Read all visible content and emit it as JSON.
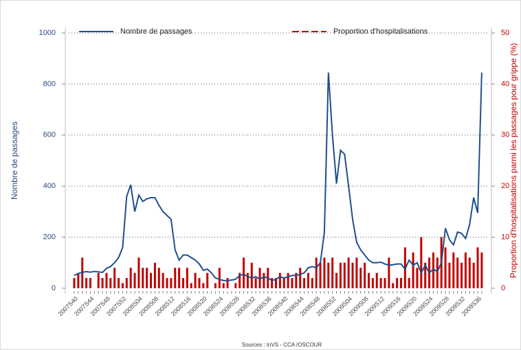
{
  "chart_data": {
    "type": "line-bar",
    "y_label": "Nombre de passages",
    "y2_label": "Proportion d'hospitalisations parmi les passages pour grippe (%)",
    "source": "Sources : InVS - CCA /OSCOUR",
    "categories": [
      "2007S40",
      null,
      null,
      null,
      "2007S44",
      null,
      null,
      null,
      "2007S48",
      null,
      null,
      null,
      "2007S52",
      null,
      null,
      null,
      "2008S04",
      null,
      null,
      null,
      "2008S08",
      null,
      null,
      null,
      "2008S12",
      null,
      null,
      null,
      "2008S16",
      null,
      null,
      null,
      "2008S20",
      null,
      null,
      null,
      "2008S24",
      null,
      null,
      null,
      "2008S28",
      null,
      null,
      null,
      "2008S32",
      null,
      null,
      null,
      "2008S36",
      null,
      null,
      null,
      "2008S40",
      null,
      null,
      null,
      "2008S44",
      null,
      null,
      null,
      "2008S48",
      null,
      null,
      null,
      "2008S52",
      null,
      null,
      null,
      "2009S04",
      null,
      null,
      null,
      "2009S08",
      null,
      null,
      null,
      "2009S12",
      null,
      null,
      null,
      "2009S16",
      null,
      null,
      null,
      "2009S20",
      null,
      null,
      null,
      "2009S24",
      null,
      null,
      null,
      "2009S28",
      null,
      null,
      null,
      "2009S32",
      null,
      null,
      null,
      "2009S36",
      null
    ],
    "series": [
      {
        "name": "Nombre de passages",
        "type": "line",
        "color": "#1f4e8c",
        "axis": "y",
        "values": [
          50,
          58,
          62,
          65,
          63,
          66,
          64,
          62,
          78,
          85,
          100,
          120,
          160,
          360,
          405,
          300,
          365,
          340,
          350,
          355,
          355,
          325,
          300,
          285,
          270,
          150,
          110,
          130,
          130,
          120,
          110,
          95,
          70,
          75,
          60,
          40,
          35,
          30,
          30,
          32,
          35,
          50,
          55,
          45,
          40,
          45,
          35,
          45,
          40,
          30,
          35,
          45,
          40,
          45,
          50,
          50,
          55,
          60,
          80,
          85,
          80,
          100,
          220,
          845,
          600,
          410,
          540,
          525,
          400,
          270,
          180,
          150,
          130,
          110,
          100,
          100,
          102,
          95,
          90,
          92,
          95,
          95,
          75,
          110,
          90,
          100,
          60,
          90,
          60,
          75,
          65,
          100,
          235,
          190,
          170,
          220,
          215,
          195,
          250,
          355,
          295,
          845
        ]
      },
      {
        "name": "Proportion d'hospitalisations",
        "type": "bar",
        "color": "#c00000",
        "axis": "y2",
        "values": [
          2,
          3,
          6,
          2,
          2,
          0,
          3,
          2,
          3,
          2,
          4,
          2,
          1,
          2,
          4,
          3,
          6,
          4,
          4,
          3,
          5,
          4,
          3,
          2,
          2,
          4,
          4,
          2,
          4,
          1,
          3,
          2,
          1,
          3,
          0,
          1,
          4,
          1,
          2,
          0,
          1,
          3,
          6,
          3,
          5,
          2,
          4,
          3,
          4,
          2,
          2,
          3,
          2,
          3,
          2,
          3,
          4,
          2,
          3,
          2,
          6,
          5,
          6,
          5,
          6,
          3,
          5,
          5,
          6,
          5,
          6,
          4,
          5,
          3,
          2,
          3,
          2,
          2,
          6,
          1,
          2,
          2,
          8,
          2,
          7,
          4,
          10,
          5,
          6,
          7,
          6,
          10,
          8,
          5,
          7,
          6,
          5,
          7,
          6,
          5,
          8,
          7
        ]
      }
    ],
    "ylim": [
      0,
      1000
    ],
    "yticks": [
      0,
      200,
      400,
      600,
      800,
      1000
    ],
    "y2lim": [
      0,
      50
    ],
    "y2ticks": [
      0,
      10,
      20,
      30,
      40,
      50
    ],
    "grid": true,
    "legend": "top"
  }
}
